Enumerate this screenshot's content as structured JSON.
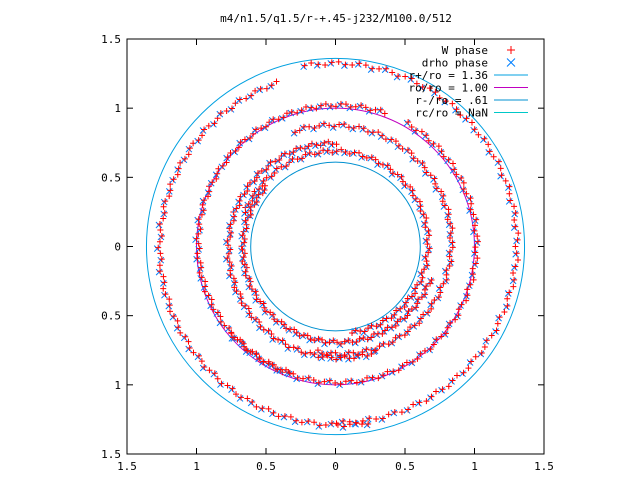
{
  "chart_data": {
    "type": "scatter",
    "title": "m4/n1.5/q1.5/r-+.45-j232/M100.0/512",
    "xlabel": "",
    "ylabel": "",
    "xlim": [
      -1.5,
      1.5
    ],
    "ylim": [
      -1.5,
      1.5
    ],
    "x_ticks": [
      -1.5,
      -1,
      -0.5,
      0,
      0.5,
      1,
      1.5
    ],
    "y_ticks": [
      -1.5,
      -1,
      -0.5,
      0,
      0.5,
      1,
      1.5
    ],
    "x_tick_labels": [
      "1.5",
      "1",
      "0.5",
      "0",
      "0.5",
      "1",
      "1.5"
    ],
    "y_tick_labels": [
      "1.5",
      "1",
      "0.5",
      "0",
      "0.5",
      "1",
      "1.5"
    ],
    "grid": false,
    "legend_position": "top-right",
    "point_series": [
      {
        "name": "W phase",
        "marker": "plus",
        "color": "#ff0000"
      },
      {
        "name": "drho phase",
        "marker": "cross",
        "color": "#0080ff"
      }
    ],
    "circles": [
      {
        "name": "r+/ro = 1.36",
        "radius": 1.36,
        "color": "#00a0e0"
      },
      {
        "name": "ro/ro = 1.00",
        "radius": 1.0,
        "color": "#c000c0"
      },
      {
        "name": "r-/ro = .61",
        "radius": 0.61,
        "color": "#0090d0"
      },
      {
        "name": "rc/ro = NaN",
        "radius": null,
        "color": "#00c8c8"
      }
    ],
    "spiral_arms": [
      {
        "r_start": 1.32,
        "r_end": 1.28,
        "theta_start_deg": 100,
        "sweep_deg": 190
      },
      {
        "r_start": 1.3,
        "r_end": 1.25,
        "theta_start_deg": 280,
        "sweep_deg": 170
      },
      {
        "r_start": 1.02,
        "r_end": 0.98,
        "theta_start_deg": 60,
        "sweep_deg": 200
      },
      {
        "r_start": 0.98,
        "r_end": 1.02,
        "theta_start_deg": 250,
        "sweep_deg": 180
      },
      {
        "r_start": 0.88,
        "r_end": 0.78,
        "theta_start_deg": 110,
        "sweep_deg": 210
      },
      {
        "r_start": 0.82,
        "r_end": 0.74,
        "theta_start_deg": 290,
        "sweep_deg": 200
      },
      {
        "r_start": 0.7,
        "r_end": 0.64,
        "theta_start_deg": 160,
        "sweep_deg": 240
      },
      {
        "r_start": 0.72,
        "r_end": 0.66,
        "theta_start_deg": 340,
        "sweep_deg": 200
      }
    ],
    "colors": {
      "axis": "#000000",
      "w_phase": "#ff0000",
      "drho_phase": "#0080ff"
    }
  }
}
